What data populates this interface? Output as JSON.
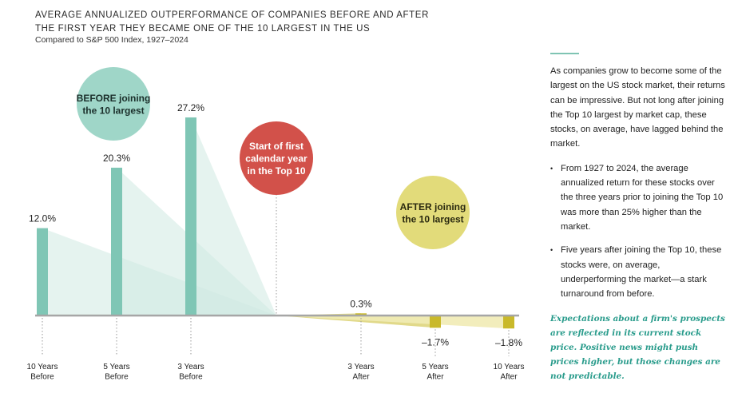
{
  "title_line1": "AVERAGE ANNUALIZED OUTPERFORMANCE OF COMPANIES BEFORE AND AFTER",
  "title_line2": "THE FIRST YEAR THEY BECAME ONE OF THE 10 LARGEST IN THE US",
  "subtitle": "Compared to S&P 500 Index, 1927–2024",
  "callouts": {
    "before": [
      "BEFORE joining",
      "the 10 largest"
    ],
    "start": [
      "Start of first",
      "calendar year",
      "in the Top 10"
    ],
    "after": [
      "AFTER joining",
      "the 10 largest"
    ]
  },
  "colors": {
    "before_bar": "#7fc6b5",
    "before_fill": "#cfe9e1",
    "after_bar": "#c9b92a",
    "after_fill": "#f1ebb5",
    "before_circle": "#9fd6c8",
    "start_circle": "#d2514a",
    "after_circle": "#e2db7a",
    "axis": "#a6a6a6"
  },
  "side_text": {
    "intro": "As companies grow to become some of the largest on the US stock market, their returns can be impressive. But not long after joining the Top 10 largest by market cap, these stocks, on average, have lagged behind the market.",
    "bullets": [
      "From 1927 to 2024, the average annualized return for these stocks over the three years prior to joining the Top 10 was more than 25% higher than the market.",
      "Five years after joining the Top 10, these stocks were, on average, underperforming the market—a stark turnaround from before."
    ],
    "quote": "Expectations about a firm's prospects are reflected in its current stock price. Positive news might push prices higher, but those changes are not predictable."
  },
  "chart_data": {
    "type": "bar",
    "categories": [
      [
        "10 Years",
        "Before"
      ],
      [
        "5 Years",
        "Before"
      ],
      [
        "3 Years",
        "Before"
      ],
      [
        "3 Years",
        "After"
      ],
      [
        "5 Years",
        "After"
      ],
      [
        "10 Years",
        "After"
      ]
    ],
    "values": [
      12.0,
      20.3,
      27.2,
      0.3,
      -1.7,
      -1.8
    ],
    "value_labels": [
      "12.0%",
      "20.3%",
      "27.2%",
      "0.3%",
      "–1.7%",
      "–1.8%"
    ],
    "unit": "%",
    "title": "AVERAGE ANNUALIZED OUTPERFORMANCE OF COMPANIES BEFORE AND AFTER THE FIRST YEAR THEY BECAME ONE OF THE 10 LARGEST IN THE US",
    "subtitle": "Compared to S&P 500 Index, 1927–2024",
    "xlabel": "",
    "ylabel": "",
    "grid": false,
    "legend": "none"
  }
}
